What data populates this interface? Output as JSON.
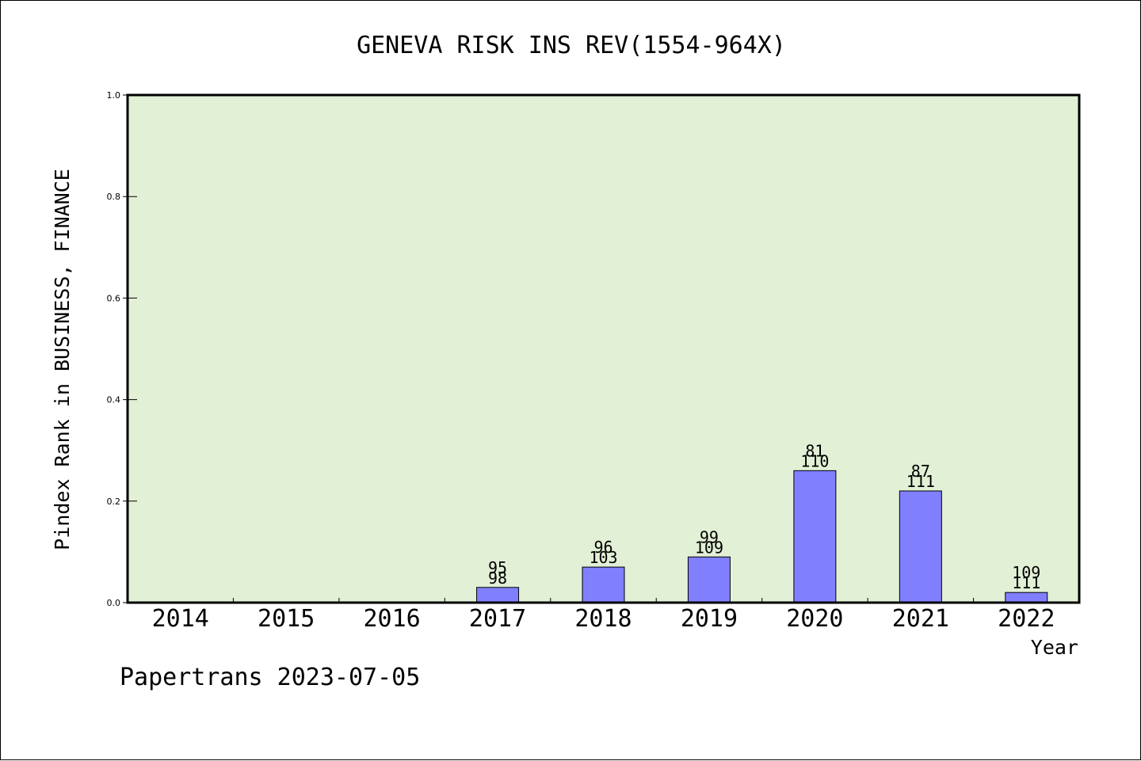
{
  "chart_data": {
    "type": "bar",
    "title": "GENEVA RISK INS REV(1554-964X)",
    "xlabel": "Year",
    "ylabel": "Pindex Rank in BUSINESS, FINANCE",
    "categories": [
      "2014",
      "2015",
      "2016",
      "2017",
      "2018",
      "2019",
      "2020",
      "2021",
      "2022"
    ],
    "values": [
      0,
      0,
      0,
      0.03,
      0.07,
      0.09,
      0.26,
      0.22,
      0.02
    ],
    "bar_labels": [
      {
        "top": "",
        "bottom": ""
      },
      {
        "top": "",
        "bottom": ""
      },
      {
        "top": "",
        "bottom": ""
      },
      {
        "top": "95",
        "bottom": "98"
      },
      {
        "top": "96",
        "bottom": "103"
      },
      {
        "top": "99",
        "bottom": "109"
      },
      {
        "top": "81",
        "bottom": "110"
      },
      {
        "top": "87",
        "bottom": "111"
      },
      {
        "top": "109",
        "bottom": "111"
      }
    ],
    "ylim": [
      0,
      1.0
    ],
    "yticks": [
      "0.0",
      "0.2",
      "0.4",
      "0.6",
      "0.8",
      "1.0"
    ],
    "grid": false,
    "legend": "none",
    "colors": {
      "plot_background": "#e2f0d6",
      "bar_fill": "#8080ff",
      "bar_stroke": "#000000"
    }
  },
  "footer": "Papertrans 2023-07-05"
}
